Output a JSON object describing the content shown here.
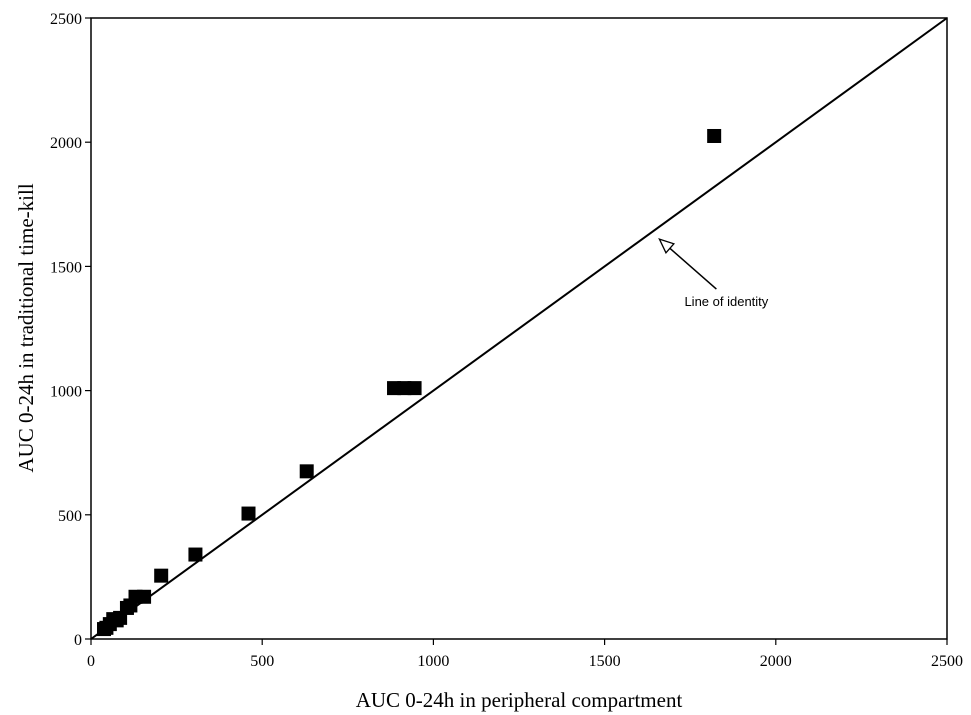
{
  "chart_data": {
    "type": "scatter",
    "title": "",
    "xlabel": "AUC 0-24h in peripheral compartment",
    "ylabel": "AUC 0-24h in traditional time-kill",
    "xlim": [
      0,
      2500
    ],
    "ylim": [
      0,
      2500
    ],
    "x_ticks": [
      "0",
      "500",
      "1000",
      "1500",
      "2000",
      "2500"
    ],
    "y_ticks": [
      "0",
      "500",
      "1000",
      "1500",
      "2000",
      "2500"
    ],
    "grid": false,
    "legend": "none",
    "marker_color": "#000000",
    "series": [
      {
        "x": [
          38,
          45,
          55,
          65,
          75,
          85,
          105,
          115,
          130,
          155,
          205,
          305,
          460,
          630,
          885,
          915,
          945,
          1820
        ],
        "y": [
          40,
          45,
          60,
          80,
          75,
          85,
          125,
          135,
          170,
          170,
          255,
          340,
          505,
          675,
          1010,
          1010,
          1010,
          2025
        ]
      }
    ],
    "reference_line": {
      "from": [
        0,
        0
      ],
      "to": [
        2500,
        2500
      ]
    },
    "annotations": [
      {
        "text": "Line of identity",
        "target_x": 1660,
        "target_y": 1610
      }
    ]
  }
}
